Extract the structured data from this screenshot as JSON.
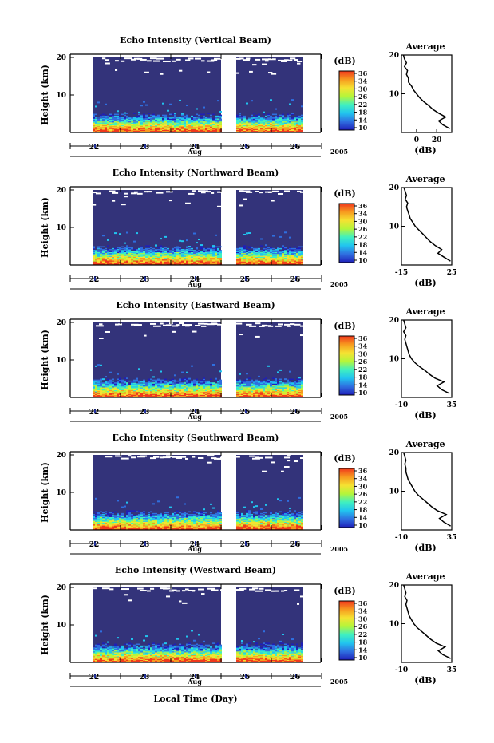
{
  "figure": {
    "xaxis_label": "Local Time (Day)",
    "month_label": "Aug",
    "year_label": "2005",
    "height_label": "Height (km)",
    "colorbar_unit": "(dB)",
    "colorbar_ticks": [
      "36",
      "34",
      "30",
      "26",
      "22",
      "18",
      "14",
      "10"
    ],
    "avg_title": "Average",
    "avg_xlabel": "(dB)"
  },
  "colors": {
    "background": "#33337a",
    "colormap": [
      "#1f1fb8",
      "#2f6fe0",
      "#21c4ef",
      "#3ff0c0",
      "#b5f53a",
      "#f5e232",
      "#f79a1f",
      "#f0381c"
    ]
  },
  "chart_data": [
    {
      "type": "heatmap",
      "title": "Echo Intensity (Vertical Beam)",
      "ylabel": "Height (km)",
      "ylim": [
        0,
        20
      ],
      "y_ticks": [
        "20",
        "10"
      ],
      "x_ticks": [
        "22",
        "23",
        "24",
        "25",
        "26"
      ],
      "xlabel": "Aug",
      "colorbar": {
        "label": "(dB)",
        "range": [
          10,
          36
        ]
      },
      "profile": {
        "type": "line",
        "title": "Average",
        "xlabel": "(dB)",
        "x_ticks": [
          "0",
          "20"
        ],
        "xlim": [
          -15,
          35
        ],
        "y_ticks": [
          "20",
          "10"
        ],
        "heights": [
          1,
          2,
          3,
          4,
          5,
          6,
          7,
          8,
          9,
          10,
          11,
          12,
          13,
          14,
          15,
          16,
          17,
          18,
          19,
          20
        ],
        "values": [
          33,
          26,
          22,
          29,
          22,
          16,
          12,
          7,
          3,
          0,
          -3,
          -5,
          -8,
          -8,
          -10,
          -9,
          -12,
          -10,
          -12,
          -13
        ]
      }
    },
    {
      "type": "heatmap",
      "title": "Echo Intensity (Northward Beam)",
      "ylabel": "Height (km)",
      "ylim": [
        0,
        20
      ],
      "y_ticks": [
        "20",
        "10"
      ],
      "x_ticks": [
        "22",
        "23",
        "24",
        "25",
        "26"
      ],
      "xlabel": "Aug",
      "colorbar": {
        "label": "(dB)",
        "range": [
          10,
          36
        ]
      },
      "profile": {
        "type": "line",
        "title": "Average",
        "xlabel": "(dB)",
        "x_ticks": [
          "-15",
          "25"
        ],
        "xlim": [
          -15,
          25
        ],
        "y_ticks": [
          "20",
          "10"
        ],
        "heights": [
          1,
          2,
          3,
          4,
          5,
          6,
          7,
          8,
          9,
          10,
          11,
          12,
          13,
          14,
          15,
          16,
          17,
          18,
          19,
          20
        ],
        "values": [
          24,
          19,
          14,
          17,
          12,
          8,
          5,
          2,
          -1,
          -4,
          -6,
          -8,
          -9,
          -10,
          -11,
          -10,
          -12,
          -11,
          -12,
          -13
        ]
      }
    },
    {
      "type": "heatmap",
      "title": "Echo Intensity (Eastward Beam)",
      "ylabel": "Height (km)",
      "ylim": [
        0,
        20
      ],
      "y_ticks": [
        "20",
        "10"
      ],
      "x_ticks": [
        "22",
        "23",
        "24",
        "25",
        "26"
      ],
      "xlabel": "Aug",
      "colorbar": {
        "label": "(dB)",
        "range": [
          10,
          36
        ]
      },
      "profile": {
        "type": "line",
        "title": "Average",
        "xlabel": "(dB)",
        "x_ticks": [
          "-10",
          "35"
        ],
        "xlim": [
          -10,
          35
        ],
        "y_ticks": [
          "20",
          "10"
        ],
        "heights": [
          1,
          2,
          3,
          4,
          5,
          6,
          7,
          8,
          9,
          10,
          11,
          12,
          13,
          14,
          15,
          16,
          17,
          18,
          19,
          20
        ],
        "values": [
          33,
          26,
          22,
          28,
          20,
          15,
          11,
          6,
          2,
          -1,
          -3,
          -4,
          -5,
          -6,
          -7,
          -6,
          -8,
          -6,
          -7,
          -8
        ]
      }
    },
    {
      "type": "heatmap",
      "title": "Echo Intensity (Southward Beam)",
      "ylabel": "Height (km)",
      "ylim": [
        0,
        20
      ],
      "y_ticks": [
        "20",
        "10"
      ],
      "x_ticks": [
        "22",
        "23",
        "24",
        "25",
        "26"
      ],
      "xlabel": "Aug",
      "colorbar": {
        "label": "(dB)",
        "range": [
          10,
          36
        ]
      },
      "profile": {
        "type": "line",
        "title": "Average",
        "xlabel": "(dB)",
        "x_ticks": [
          "-10",
          "35"
        ],
        "xlim": [
          -10,
          35
        ],
        "y_ticks": [
          "20",
          "10"
        ],
        "heights": [
          1,
          2,
          3,
          4,
          5,
          6,
          7,
          8,
          9,
          10,
          11,
          12,
          13,
          14,
          15,
          16,
          17,
          18,
          19,
          20
        ],
        "values": [
          34,
          28,
          24,
          30,
          22,
          17,
          13,
          9,
          5,
          2,
          0,
          -2,
          -4,
          -5,
          -6,
          -6,
          -7,
          -6,
          -7,
          -8
        ]
      }
    },
    {
      "type": "heatmap",
      "title": "Echo Intensity (Westward Beam)",
      "ylabel": "Height (km)",
      "ylim": [
        0,
        20
      ],
      "y_ticks": [
        "20",
        "10"
      ],
      "x_ticks": [
        "22",
        "23",
        "24",
        "25",
        "26"
      ],
      "xlabel": "Aug",
      "colorbar": {
        "label": "(dB)",
        "range": [
          10,
          36
        ]
      },
      "profile": {
        "type": "line",
        "title": "Average",
        "xlabel": "(dB)",
        "x_ticks": [
          "-10",
          "35"
        ],
        "xlim": [
          -10,
          35
        ],
        "y_ticks": [
          "20",
          "10"
        ],
        "heights": [
          1,
          2,
          3,
          4,
          5,
          6,
          7,
          8,
          9,
          10,
          11,
          12,
          13,
          14,
          15,
          16,
          17,
          18,
          19,
          20
        ],
        "values": [
          34,
          27,
          23,
          29,
          21,
          16,
          12,
          8,
          4,
          1,
          -1,
          -3,
          -4,
          -5,
          -6,
          -5,
          -7,
          -6,
          -7,
          -8
        ]
      }
    }
  ]
}
